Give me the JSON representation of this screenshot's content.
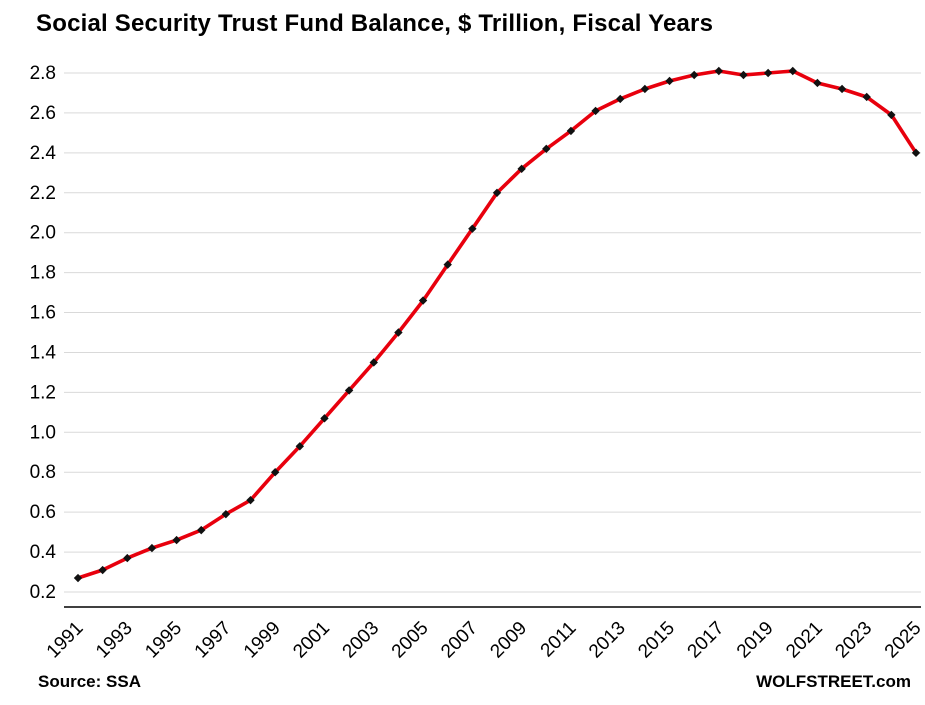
{
  "title": "Social Security Trust Fund Balance, $ Trillion, Fiscal Years",
  "footer": {
    "source": "Source: SSA",
    "brand": "WOLFSTREET.com"
  },
  "chart_data": {
    "type": "line",
    "title": "Social Security Trust Fund Balance, $ Trillion, Fiscal Years",
    "xlabel": "",
    "ylabel": "",
    "x": [
      1991,
      1992,
      1993,
      1994,
      1995,
      1996,
      1997,
      1998,
      1999,
      2000,
      2001,
      2002,
      2003,
      2004,
      2005,
      2006,
      2007,
      2008,
      2009,
      2010,
      2011,
      2012,
      2013,
      2014,
      2015,
      2016,
      2017,
      2018,
      2019,
      2020,
      2021,
      2022,
      2023,
      2024,
      2025
    ],
    "values": [
      0.27,
      0.31,
      0.37,
      0.42,
      0.46,
      0.51,
      0.59,
      0.66,
      0.8,
      0.93,
      1.07,
      1.21,
      1.35,
      1.5,
      1.66,
      1.84,
      2.02,
      2.2,
      2.32,
      2.42,
      2.51,
      2.61,
      2.67,
      2.72,
      2.76,
      2.79,
      2.81,
      2.79,
      2.8,
      2.81,
      2.75,
      2.72,
      2.68,
      2.59,
      2.4
    ],
    "x_tick_labels": [
      "1991",
      "1993",
      "1995",
      "1997",
      "1999",
      "2001",
      "2003",
      "2005",
      "2007",
      "2009",
      "2011",
      "2013",
      "2015",
      "2017",
      "2019",
      "2021",
      "2023",
      "2025"
    ],
    "y_ticks": [
      0.2,
      0.4,
      0.6,
      0.8,
      1.0,
      1.2,
      1.4,
      1.6,
      1.8,
      2.0,
      2.2,
      2.4,
      2.6,
      2.8
    ],
    "ylim": [
      0.125,
      2.95
    ],
    "xlim": [
      1991,
      2025
    ],
    "grid": "horizontal",
    "legend": "none",
    "line_color": "#e8000d",
    "line_width": 3.6,
    "marker": "diamond",
    "marker_color": "#111111",
    "gridline_color": "#d9d9d9",
    "axis_color": "#000000",
    "tick_label_color": "#000000"
  }
}
